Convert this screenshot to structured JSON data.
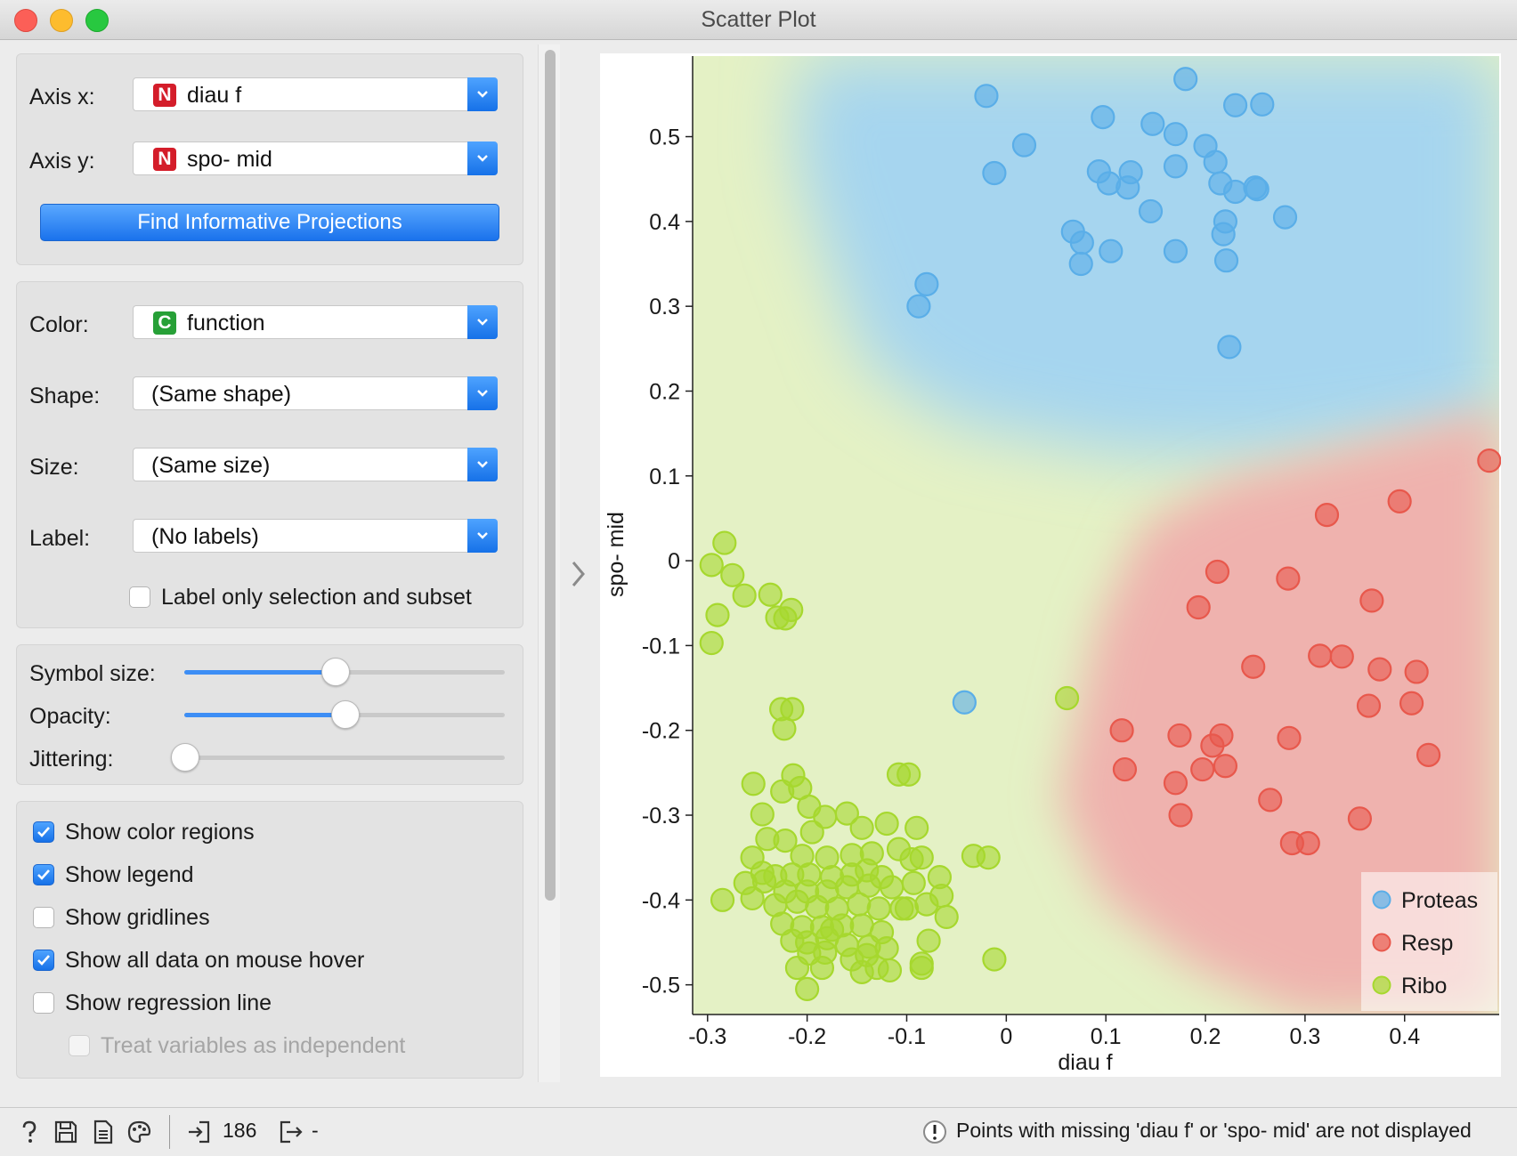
{
  "window": {
    "title": "Scatter Plot"
  },
  "axes_panel": {
    "axis_x_label": "Axis x:",
    "axis_x_value": "diau f",
    "axis_x_badge": "N",
    "axis_y_label": "Axis y:",
    "axis_y_value": "spo- mid",
    "axis_y_badge": "N",
    "find_button": "Find Informative Projections"
  },
  "attributes_panel": {
    "color_label": "Color:",
    "color_value": "function",
    "color_badge": "C",
    "shape_label": "Shape:",
    "shape_value": "(Same shape)",
    "size_label": "Size:",
    "size_value": "(Same size)",
    "label_label": "Label:",
    "label_value": "(No labels)",
    "label_only_selection": {
      "label": "Label only selection and subset",
      "checked": false
    }
  },
  "sliders_panel": {
    "symbol_size": {
      "label": "Symbol size:",
      "fraction": 0.47
    },
    "opacity": {
      "label": "Opacity:",
      "fraction": 0.5
    },
    "jittering": {
      "label": "Jittering:",
      "fraction": 0.0
    }
  },
  "options_panel": {
    "show_color_regions": {
      "label": "Show color regions",
      "checked": true
    },
    "show_legend": {
      "label": "Show legend",
      "checked": true
    },
    "show_gridlines": {
      "label": "Show gridlines",
      "checked": false
    },
    "show_all_data_hover": {
      "label": "Show all data on mouse hover",
      "checked": true
    },
    "show_regression_line": {
      "label": "Show regression line",
      "checked": false
    },
    "treat_independent": {
      "label": "Treat variables as independent",
      "checked": false,
      "disabled": true
    }
  },
  "statusbar": {
    "input_count": "186",
    "output_count": "-",
    "warning_text": "Points with missing 'diau f' or 'spo- mid' are not displayed"
  },
  "colors": {
    "proteas": "#5aaee8",
    "resp": "#e8584c",
    "ribo": "#a6d82e",
    "accent": "#1a72ec"
  },
  "chart_data": {
    "type": "scatter",
    "xlabel": "diau f",
    "ylabel": "spo- mid",
    "xlim": [
      -0.315,
      0.495
    ],
    "ylim": [
      -0.535,
      0.595
    ],
    "xticks": [
      -0.3,
      -0.2,
      -0.1,
      0,
      0.1,
      0.2,
      0.3,
      0.4
    ],
    "yticks": [
      0.5,
      0.4,
      0.3,
      0.2,
      0.1,
      0,
      -0.1,
      -0.2,
      -0.3,
      -0.4,
      -0.5
    ],
    "xtick_labels": [
      "-0.3",
      "-0.2",
      "-0.1",
      "0",
      "0.1",
      "0.2",
      "0.3",
      "0.4"
    ],
    "ytick_labels": [
      "0.5",
      "0.4",
      "0.3",
      "0.2",
      "0.1",
      "0",
      "-0.1",
      "-0.2",
      "-0.3",
      "-0.4",
      "-0.5"
    ],
    "legend_position": "bottom-right",
    "legend": [
      "Proteas",
      "Resp",
      "Ribo"
    ],
    "series": [
      {
        "name": "Proteas",
        "points": [
          [
            -0.02,
            0.548
          ],
          [
            0.18,
            0.568
          ],
          [
            0.257,
            0.538
          ],
          [
            0.23,
            0.537
          ],
          [
            0.097,
            0.523
          ],
          [
            0.147,
            0.515
          ],
          [
            0.17,
            0.503
          ],
          [
            0.2,
            0.489
          ],
          [
            0.018,
            0.49
          ],
          [
            -0.012,
            0.457
          ],
          [
            0.093,
            0.459
          ],
          [
            0.125,
            0.458
          ],
          [
            0.21,
            0.47
          ],
          [
            0.17,
            0.465
          ],
          [
            0.215,
            0.445
          ],
          [
            0.103,
            0.445
          ],
          [
            0.122,
            0.44
          ],
          [
            0.25,
            0.44
          ],
          [
            0.252,
            0.438
          ],
          [
            0.23,
            0.435
          ],
          [
            0.145,
            0.412
          ],
          [
            0.28,
            0.405
          ],
          [
            0.22,
            0.4
          ],
          [
            0.067,
            0.388
          ],
          [
            0.076,
            0.375
          ],
          [
            0.218,
            0.385
          ],
          [
            0.105,
            0.365
          ],
          [
            0.17,
            0.365
          ],
          [
            0.075,
            0.35
          ],
          [
            0.221,
            0.354
          ],
          [
            -0.08,
            0.326
          ],
          [
            -0.088,
            0.3
          ],
          [
            0.224,
            0.252
          ],
          [
            -0.042,
            -0.167
          ]
        ]
      },
      {
        "name": "Resp",
        "points": [
          [
            0.485,
            0.118
          ],
          [
            0.395,
            0.07
          ],
          [
            0.322,
            0.054
          ],
          [
            0.212,
            -0.013
          ],
          [
            0.283,
            -0.021
          ],
          [
            0.367,
            -0.047
          ],
          [
            0.193,
            -0.055
          ],
          [
            0.248,
            -0.125
          ],
          [
            0.315,
            -0.112
          ],
          [
            0.337,
            -0.113
          ],
          [
            0.375,
            -0.128
          ],
          [
            0.412,
            -0.131
          ],
          [
            0.364,
            -0.171
          ],
          [
            0.407,
            -0.168
          ],
          [
            0.116,
            -0.2
          ],
          [
            0.174,
            -0.206
          ],
          [
            0.216,
            -0.206
          ],
          [
            0.284,
            -0.209
          ],
          [
            0.207,
            -0.218
          ],
          [
            0.424,
            -0.229
          ],
          [
            0.119,
            -0.246
          ],
          [
            0.197,
            -0.246
          ],
          [
            0.22,
            -0.242
          ],
          [
            0.17,
            -0.262
          ],
          [
            0.265,
            -0.282
          ],
          [
            0.175,
            -0.3
          ],
          [
            0.355,
            -0.304
          ],
          [
            0.287,
            -0.333
          ],
          [
            0.303,
            -0.333
          ]
        ]
      },
      {
        "name": "Ribo",
        "points": [
          [
            -0.283,
            0.021
          ],
          [
            -0.296,
            -0.005
          ],
          [
            -0.275,
            -0.017
          ],
          [
            -0.263,
            -0.041
          ],
          [
            -0.237,
            -0.04
          ],
          [
            -0.216,
            -0.058
          ],
          [
            -0.29,
            -0.064
          ],
          [
            -0.23,
            -0.067
          ],
          [
            -0.222,
            -0.068
          ],
          [
            -0.296,
            -0.097
          ],
          [
            0.061,
            -0.162
          ],
          [
            -0.226,
            -0.175
          ],
          [
            -0.215,
            -0.175
          ],
          [
            -0.223,
            -0.198
          ],
          [
            -0.108,
            -0.252
          ],
          [
            -0.098,
            -0.252
          ],
          [
            -0.254,
            -0.263
          ],
          [
            -0.214,
            -0.253
          ],
          [
            -0.225,
            -0.272
          ],
          [
            -0.207,
            -0.268
          ],
          [
            -0.198,
            -0.29
          ],
          [
            -0.245,
            -0.299
          ],
          [
            -0.182,
            -0.302
          ],
          [
            -0.16,
            -0.298
          ],
          [
            -0.12,
            -0.31
          ],
          [
            -0.09,
            -0.315
          ],
          [
            -0.145,
            -0.315
          ],
          [
            -0.24,
            -0.328
          ],
          [
            -0.222,
            -0.33
          ],
          [
            -0.195,
            -0.32
          ],
          [
            -0.205,
            -0.348
          ],
          [
            -0.18,
            -0.35
          ],
          [
            -0.155,
            -0.347
          ],
          [
            -0.135,
            -0.345
          ],
          [
            -0.108,
            -0.34
          ],
          [
            -0.095,
            -0.352
          ],
          [
            -0.085,
            -0.35
          ],
          [
            -0.033,
            -0.348
          ],
          [
            -0.255,
            -0.35
          ],
          [
            -0.245,
            -0.368
          ],
          [
            -0.232,
            -0.372
          ],
          [
            -0.215,
            -0.37
          ],
          [
            -0.198,
            -0.37
          ],
          [
            -0.175,
            -0.373
          ],
          [
            -0.155,
            -0.37
          ],
          [
            -0.14,
            -0.365
          ],
          [
            -0.125,
            -0.373
          ],
          [
            -0.262,
            -0.38
          ],
          [
            -0.243,
            -0.378
          ],
          [
            -0.222,
            -0.39
          ],
          [
            -0.2,
            -0.39
          ],
          [
            -0.18,
            -0.39
          ],
          [
            -0.16,
            -0.385
          ],
          [
            -0.138,
            -0.383
          ],
          [
            -0.115,
            -0.385
          ],
          [
            -0.093,
            -0.38
          ],
          [
            -0.067,
            -0.373
          ],
          [
            -0.285,
            -0.4
          ],
          [
            -0.255,
            -0.398
          ],
          [
            -0.232,
            -0.406
          ],
          [
            -0.21,
            -0.402
          ],
          [
            -0.19,
            -0.408
          ],
          [
            -0.17,
            -0.41
          ],
          [
            -0.148,
            -0.405
          ],
          [
            -0.128,
            -0.41
          ],
          [
            -0.105,
            -0.41
          ],
          [
            -0.08,
            -0.405
          ],
          [
            -0.065,
            -0.395
          ],
          [
            -0.225,
            -0.428
          ],
          [
            -0.205,
            -0.432
          ],
          [
            -0.185,
            -0.432
          ],
          [
            -0.165,
            -0.43
          ],
          [
            -0.145,
            -0.43
          ],
          [
            -0.125,
            -0.438
          ],
          [
            -0.1,
            -0.41
          ],
          [
            -0.06,
            -0.42
          ],
          [
            -0.215,
            -0.448
          ],
          [
            -0.2,
            -0.45
          ],
          [
            -0.18,
            -0.445
          ],
          [
            -0.16,
            -0.453
          ],
          [
            -0.138,
            -0.455
          ],
          [
            -0.078,
            -0.448
          ],
          [
            -0.198,
            -0.463
          ],
          [
            -0.182,
            -0.462
          ],
          [
            -0.155,
            -0.47
          ],
          [
            -0.14,
            -0.465
          ],
          [
            -0.12,
            -0.457
          ],
          [
            -0.085,
            -0.475
          ],
          [
            -0.21,
            -0.48
          ],
          [
            -0.185,
            -0.48
          ],
          [
            -0.145,
            -0.485
          ],
          [
            -0.13,
            -0.48
          ],
          [
            -0.085,
            -0.48
          ],
          [
            -0.012,
            -0.47
          ],
          [
            -0.018,
            -0.35
          ],
          [
            -0.2,
            -0.505
          ],
          [
            -0.117,
            -0.483
          ],
          [
            -0.175,
            -0.435
          ]
        ]
      }
    ]
  }
}
